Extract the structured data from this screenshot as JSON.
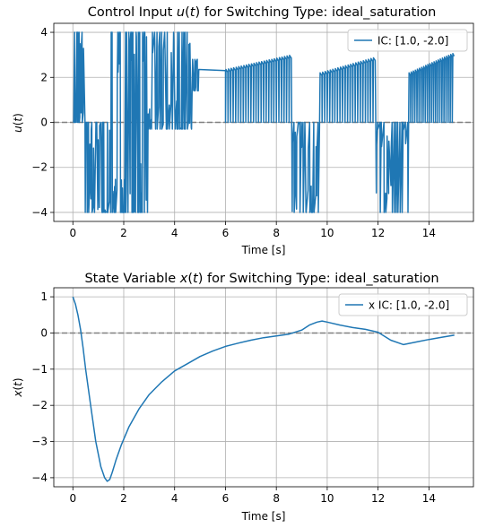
{
  "chart_data": [
    {
      "type": "line",
      "title": "Control Input u(t) for Switching Type: ideal_saturation",
      "title_parts": [
        "Control Input ",
        "u",
        "(",
        "t",
        ") for Switching Type: ideal_saturation"
      ],
      "xlabel": "Time [s]",
      "ylabel": "u(t)",
      "xlim": [
        -0.75,
        15.75
      ],
      "ylim": [
        -4.4,
        4.4
      ],
      "xticks": [
        0,
        2,
        4,
        6,
        8,
        10,
        12,
        14
      ],
      "yticks": [
        -4,
        -2,
        0,
        2,
        4
      ],
      "ytick_labels": [
        "−4",
        "−2",
        "0",
        "2",
        "4"
      ],
      "grid": true,
      "legend_position": "top-right",
      "reference_line": {
        "y": 0,
        "style": "dashed",
        "color": "#808080"
      },
      "series": [
        {
          "name": "IC: [1.0, -2.0]",
          "color": "#1f77b4",
          "segments": [
            {
              "kind": "chatter",
              "t0": 0.0,
              "t1": 0.45,
              "lo": 0.0,
              "hi": 4.0,
              "n": 10
            },
            {
              "kind": "chatter",
              "t0": 0.45,
              "t1": 1.5,
              "lo": -4.0,
              "hi": 0.0,
              "n": 22
            },
            {
              "kind": "chatter",
              "t0": 1.5,
              "t1": 2.1,
              "lo": -4.0,
              "hi": 4.0,
              "n": 14
            },
            {
              "kind": "chatter",
              "t0": 2.1,
              "t1": 2.95,
              "lo": -4.0,
              "hi": 4.0,
              "n": 20
            },
            {
              "kind": "chatter",
              "t0": 2.95,
              "t1": 4.7,
              "lo": -0.3,
              "hi": 4.0,
              "n": 30
            },
            {
              "kind": "chatter",
              "t0": 4.7,
              "t1": 4.95,
              "lo": 1.4,
              "hi": 2.8,
              "n": 6
            },
            {
              "kind": "line",
              "t": [
                4.95,
                6.0
              ],
              "u": [
                2.35,
                2.3
              ]
            },
            {
              "kind": "sawtooth",
              "t0": 6.0,
              "t1": 8.6,
              "base": 0.0,
              "peak0": 2.35,
              "peak1": 3.0,
              "n": 26
            },
            {
              "kind": "chatter",
              "t0": 8.6,
              "t1": 9.7,
              "lo": -4.0,
              "hi": 0.0,
              "n": 18
            },
            {
              "kind": "sawtooth",
              "t0": 9.7,
              "t1": 11.9,
              "base": 0.0,
              "peak0": 2.2,
              "peak1": 2.9,
              "n": 22
            },
            {
              "kind": "chatter",
              "t0": 11.9,
              "t1": 13.2,
              "lo": -4.0,
              "hi": 0.0,
              "n": 18
            },
            {
              "kind": "sawtooth",
              "t0": 13.2,
              "t1": 15.0,
              "base": 0.0,
              "peak0": 2.2,
              "peak1": 3.1,
              "n": 22
            }
          ]
        }
      ]
    },
    {
      "type": "line",
      "title": "State Variable x(t) for Switching Type: ideal_saturation",
      "title_parts": [
        "State Variable ",
        "x",
        "(",
        "t",
        ") for Switching Type: ideal_saturation"
      ],
      "xlabel": "Time [s]",
      "ylabel": "x(t)",
      "xlim": [
        -0.75,
        15.75
      ],
      "ylim": [
        -4.25,
        1.25
      ],
      "xticks": [
        0,
        2,
        4,
        6,
        8,
        10,
        12,
        14
      ],
      "yticks": [
        -4,
        -3,
        -2,
        -1,
        0,
        1
      ],
      "ytick_labels": [
        "−4",
        "−3",
        "−2",
        "−1",
        "0",
        "1"
      ],
      "grid": true,
      "legend_position": "top-right",
      "reference_line": {
        "y": 0,
        "style": "dashed",
        "color": "#808080"
      },
      "series": [
        {
          "name": "x IC: [1.0, -2.0]",
          "color": "#1f77b4",
          "x": [
            0.0,
            0.1,
            0.2,
            0.3,
            0.4,
            0.5,
            0.7,
            0.9,
            1.1,
            1.25,
            1.35,
            1.45,
            1.55,
            1.7,
            1.9,
            2.2,
            2.6,
            3.0,
            3.5,
            4.0,
            4.5,
            5.0,
            5.5,
            6.0,
            6.5,
            7.0,
            7.5,
            8.0,
            8.5,
            9.0,
            9.3,
            9.6,
            9.8,
            10.0,
            10.5,
            11.0,
            11.5,
            12.0,
            12.5,
            13.0,
            13.5,
            14.0,
            14.5,
            15.0
          ],
          "y": [
            1.0,
            0.8,
            0.5,
            0.1,
            -0.4,
            -1.0,
            -2.0,
            -3.0,
            -3.7,
            -4.0,
            -4.1,
            -4.05,
            -3.85,
            -3.5,
            -3.1,
            -2.6,
            -2.1,
            -1.7,
            -1.35,
            -1.05,
            -0.85,
            -0.65,
            -0.5,
            -0.37,
            -0.28,
            -0.2,
            -0.13,
            -0.08,
            -0.03,
            0.08,
            0.22,
            0.3,
            0.33,
            0.3,
            0.22,
            0.15,
            0.1,
            0.02,
            -0.2,
            -0.32,
            -0.25,
            -0.18,
            -0.12,
            -0.06
          ]
        }
      ]
    }
  ]
}
